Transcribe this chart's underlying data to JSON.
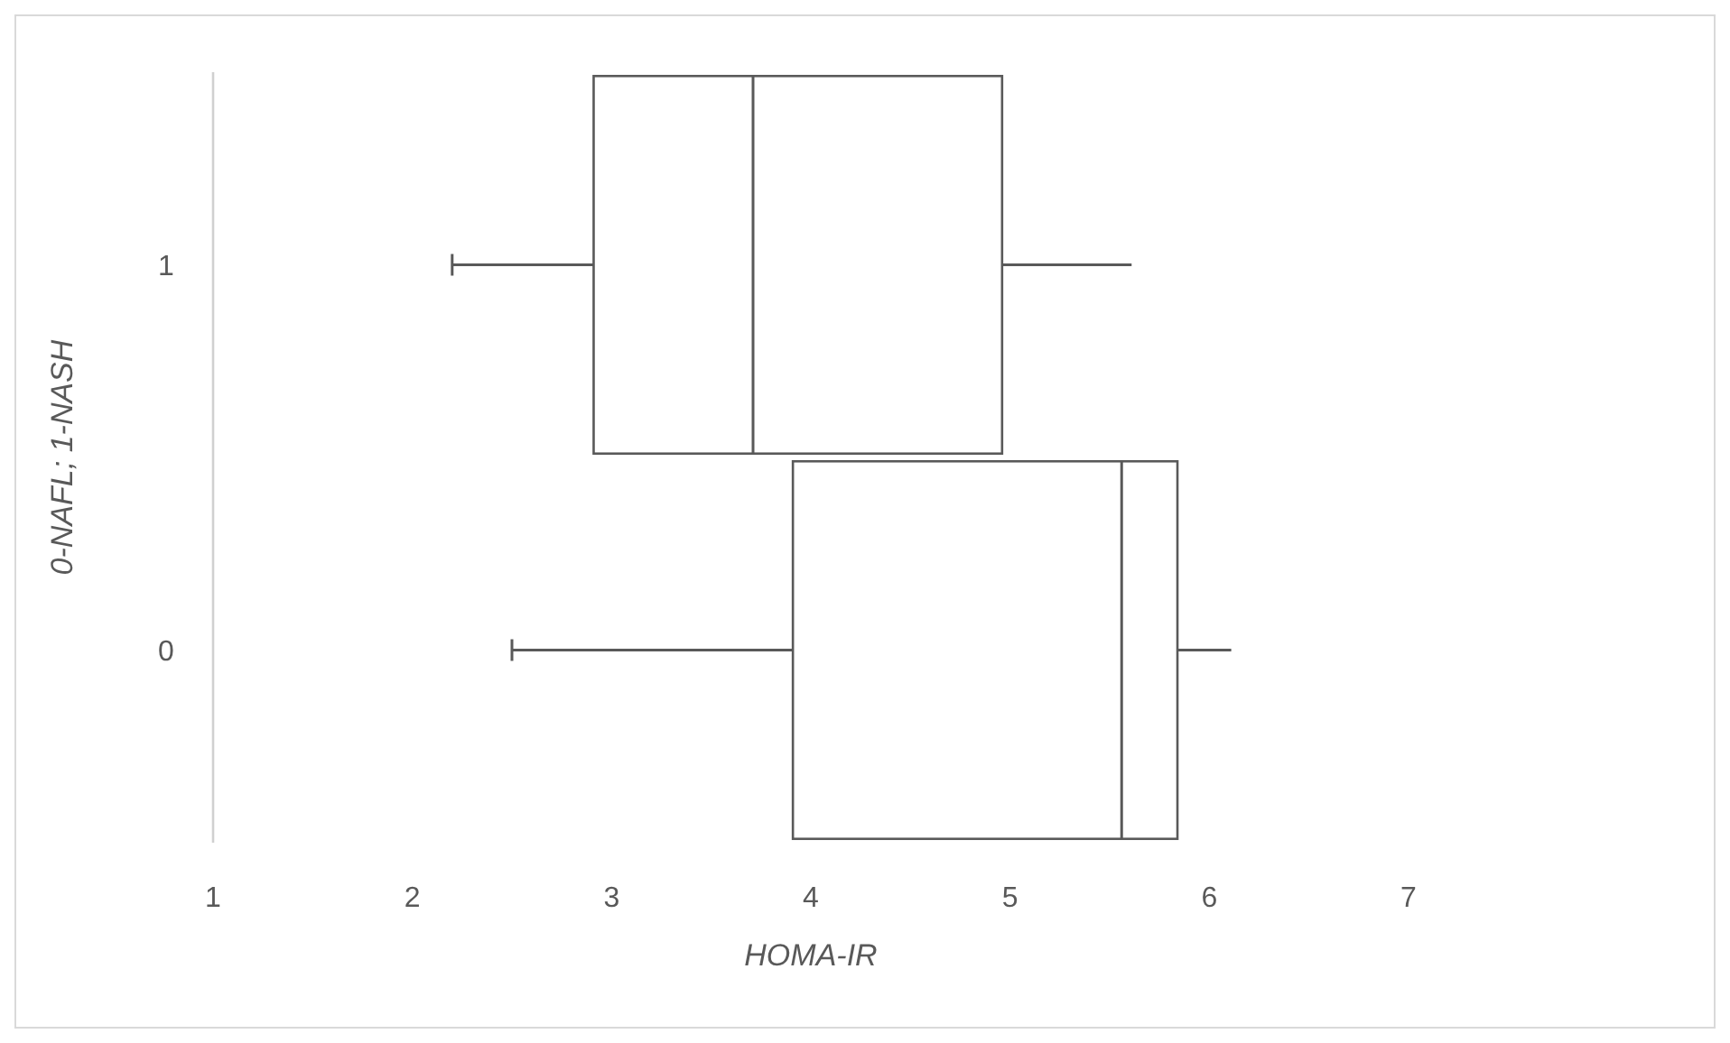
{
  "chart_data": {
    "type": "box",
    "orientation": "horizontal",
    "xlabel": "HOMA-IR",
    "ylabel": "0-NAFL; 1-NASH",
    "categories": [
      "1",
      "0"
    ],
    "series": [
      {
        "color": "#ffffff",
        "boxes": [
          {
            "low": 2.2,
            "q1": 2.91,
            "median": 3.71,
            "q3": 4.96,
            "high": 5.61
          },
          {
            "low": 2.5,
            "q1": 3.91,
            "median": 5.56,
            "q3": 5.84,
            "high": 6.11
          }
        ]
      }
    ],
    "xlim": [
      1,
      7
    ],
    "xticks": [
      1,
      2,
      3,
      4,
      5,
      6,
      7
    ],
    "grid": false
  }
}
